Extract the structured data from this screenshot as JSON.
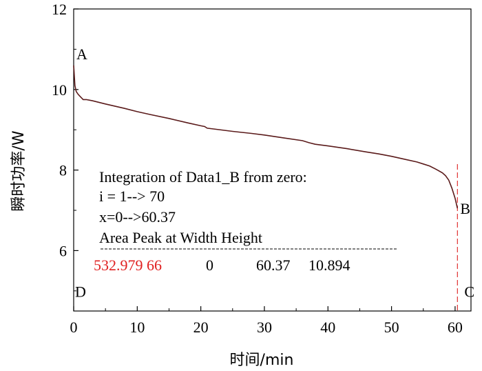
{
  "chart_data": {
    "type": "line",
    "xlabel": "时间/min",
    "ylabel": "瞬时功率/W",
    "xlim": [
      0,
      62.5
    ],
    "ylim": [
      4.5,
      12
    ],
    "xticks": [
      0,
      10,
      20,
      30,
      40,
      50,
      60
    ],
    "yticks": [
      6,
      8,
      10,
      12
    ],
    "grid": false,
    "series": [
      {
        "color": "#5a1a1a",
        "x": [
          0,
          0.2,
          0.4,
          0.7,
          1,
          1.5,
          2,
          3,
          5,
          8,
          10,
          12,
          15,
          18,
          20,
          20.6,
          21,
          22,
          25,
          28,
          30,
          33,
          36,
          37,
          38,
          40,
          43,
          46,
          48,
          50,
          52,
          54,
          55,
          56,
          57,
          58,
          58.5,
          59,
          59.5,
          60,
          60.37
        ],
        "y": [
          10.6,
          10.1,
          9.95,
          9.88,
          9.83,
          9.75,
          9.75,
          9.72,
          9.64,
          9.53,
          9.45,
          9.38,
          9.28,
          9.17,
          9.1,
          9.08,
          9.04,
          9.02,
          8.96,
          8.91,
          8.87,
          8.8,
          8.73,
          8.68,
          8.64,
          8.6,
          8.53,
          8.45,
          8.4,
          8.34,
          8.27,
          8.2,
          8.15,
          8.1,
          8.02,
          7.93,
          7.86,
          7.75,
          7.55,
          7.3,
          7.05
        ]
      }
    ],
    "vline": {
      "x": 60.37,
      "color": "#e03030"
    },
    "point_labels": [
      {
        "text": "A",
        "x": 0,
        "y": 10.85
      },
      {
        "text": "B",
        "x": 60.37,
        "y": 7.05
      },
      {
        "text": "C",
        "x": 60.37,
        "y": 4.75
      },
      {
        "text": "D",
        "x": 0,
        "y": 4.75
      }
    ],
    "annotation": {
      "lines": [
        "Integration of Data1_B from zero:",
        "i = 1--> 70",
        "x=0-->60.37",
        "Area Peak at Width Height"
      ],
      "values": [
        {
          "text": "532.979 66",
          "color": "#e02020"
        },
        {
          "text": "0",
          "color": "#000000"
        },
        {
          "text": "60.37",
          "color": "#000000"
        },
        {
          "text": "10.894",
          "color": "#000000"
        }
      ]
    }
  }
}
